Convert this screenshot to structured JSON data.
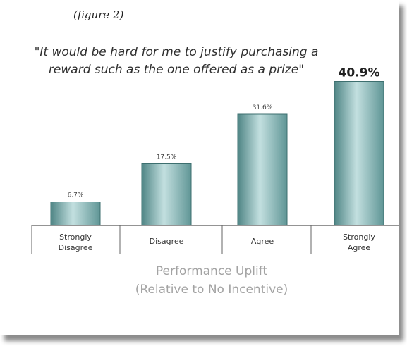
{
  "figure_label": "(figure 2)",
  "chart_data": {
    "type": "bar",
    "title": "\"It would be hard for me to justify purchasing a reward such as the one offered as a prize\"",
    "categories": [
      "Strongly Disagree",
      "Disagree",
      "Agree",
      "Strongly Agree"
    ],
    "values": [
      6.7,
      17.5,
      31.6,
      40.9
    ],
    "data_labels": [
      "6.7%",
      "17.5%",
      "31.6%",
      "40.9%"
    ],
    "xlabel": "Performance Uplift (Relative to No Incentive)",
    "xlabel_lines": [
      "Performance Uplift",
      "(Relative to No Incentive)"
    ],
    "ylabel": "",
    "grid": false,
    "legend": "none",
    "colors": {
      "bar": "#7fb5b5",
      "bar_dark": "#4f8585",
      "bar_light": "#c3e0e0",
      "axis": "#555555"
    }
  }
}
